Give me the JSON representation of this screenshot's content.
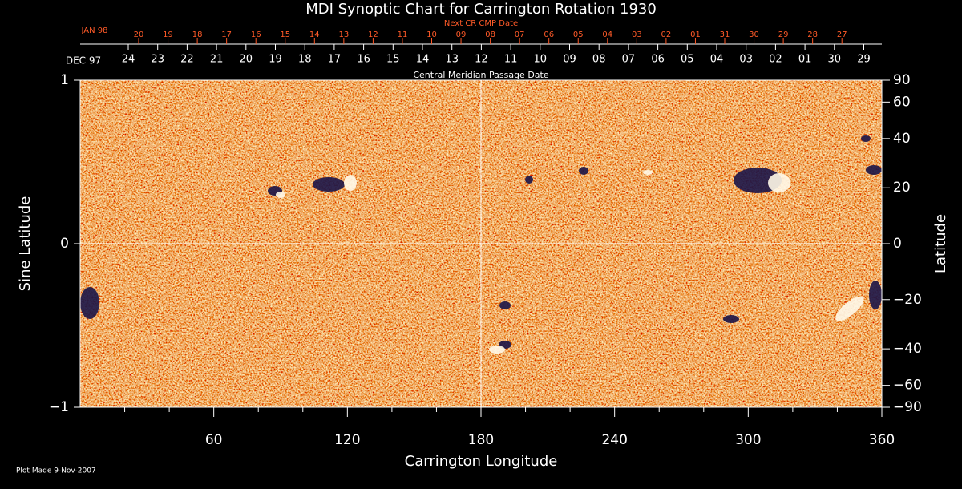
{
  "chart_data": {
    "type": "synoptic-map",
    "title": "MDI Synoptic Chart for Carrington Rotation 1930",
    "xlabel": "Carrington Longitude",
    "ylabel": "Sine Latitude",
    "y2label": "Latitude",
    "y2scale": "sine",
    "top_title": "Central Meridian Passage Date",
    "top2_title": "Next CR CMP Date",
    "top_start": "DEC 97",
    "top_dates": [
      "24",
      "23",
      "22",
      "21",
      "20",
      "19",
      "18",
      "17",
      "16",
      "15",
      "14",
      "13",
      "12",
      "11",
      "10",
      "09",
      "08",
      "07",
      "06",
      "05",
      "04",
      "03",
      "02",
      "01",
      "30",
      "29"
    ],
    "top2_start": "JAN 98",
    "top2_dates": [
      "20",
      "19",
      "18",
      "17",
      "16",
      "15",
      "14",
      "13",
      "12",
      "11",
      "10",
      "09",
      "08",
      "07",
      "06",
      "05",
      "04",
      "03",
      "02",
      "01",
      "31",
      "30",
      "29",
      "28",
      "27"
    ],
    "footer": "Plot Made  9-Nov-2007",
    "xlim": [
      0,
      360
    ],
    "xticks": [
      60,
      120,
      180,
      240,
      300,
      360
    ],
    "xminorticks": [
      20,
      40,
      80,
      100,
      140,
      160,
      200,
      220,
      260,
      280,
      320,
      340
    ],
    "ylim": [
      -1,
      1
    ],
    "yticks": [
      {
        "value": -1,
        "label": "−1"
      },
      0,
      1
    ],
    "y2lim": [
      -90,
      90
    ],
    "y2ticks": [
      90,
      60,
      40,
      20,
      0,
      {
        "value": -20,
        "label": "−20"
      },
      {
        "value": -40,
        "label": "−40"
      },
      {
        "value": -60,
        "label": "−60"
      },
      {
        "value": -90,
        "label": "−90"
      }
    ],
    "xgrid": [
      180
    ],
    "ygrid": [
      0
    ]
  }
}
